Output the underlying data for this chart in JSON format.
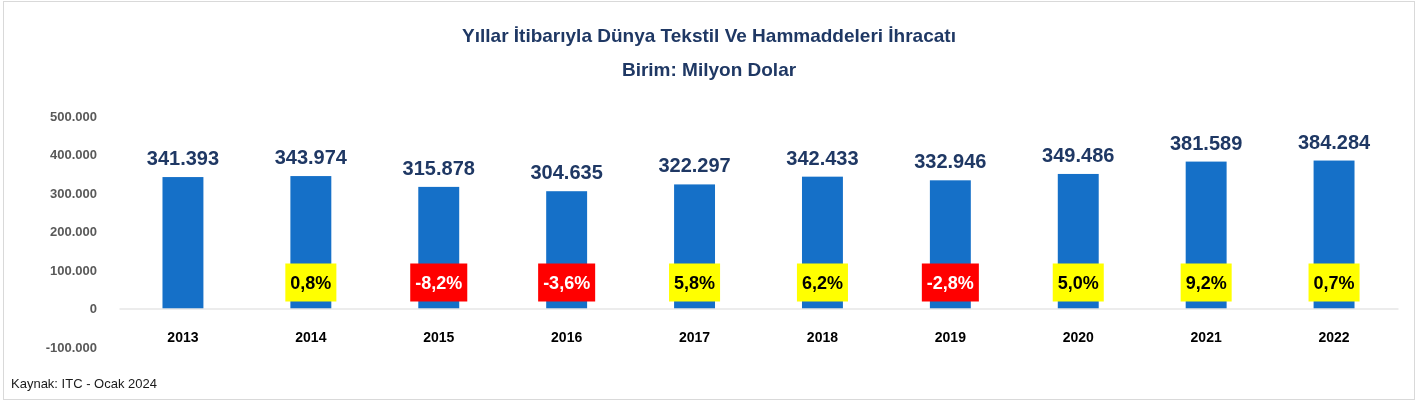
{
  "chart_data": {
    "type": "bar",
    "title": "Yıllar İtibarıyla Dünya Tekstil Ve Hammaddeleri İhracatı",
    "subtitle": "Birim: Milyon Dolar",
    "categories": [
      "2013",
      "2014",
      "2015",
      "2016",
      "2017",
      "2018",
      "2019",
      "2020",
      "2021",
      "2022"
    ],
    "values": [
      341393,
      343974,
      315878,
      304635,
      322297,
      342433,
      332946,
      349486,
      381589,
      384284
    ],
    "value_labels": [
      "341.393",
      "343.974",
      "315.878",
      "304.635",
      "322.297",
      "342.433",
      "332.946",
      "349.486",
      "381.589",
      "384.284"
    ],
    "color": "#1570c8",
    "ylim": [
      -100000,
      500000
    ],
    "yticks": [
      {
        "value": -100000,
        "label": "-100.000"
      },
      0,
      {
        "value": 100000,
        "label": "100.000"
      },
      {
        "value": 200000,
        "label": "200.000"
      },
      {
        "value": 300000,
        "label": "300.000"
      },
      {
        "value": 400000,
        "label": "400.000"
      },
      {
        "value": 500000,
        "label": "500.000"
      }
    ],
    "annotations": [
      "0,8%",
      "-8,2%",
      "-3,6%",
      "5,8%",
      "6,2%",
      "-2,8%",
      "5,0%",
      "9,2%",
      "0,7%",
      "Kaynak: ITC - Ocak 2024"
    ]
  }
}
